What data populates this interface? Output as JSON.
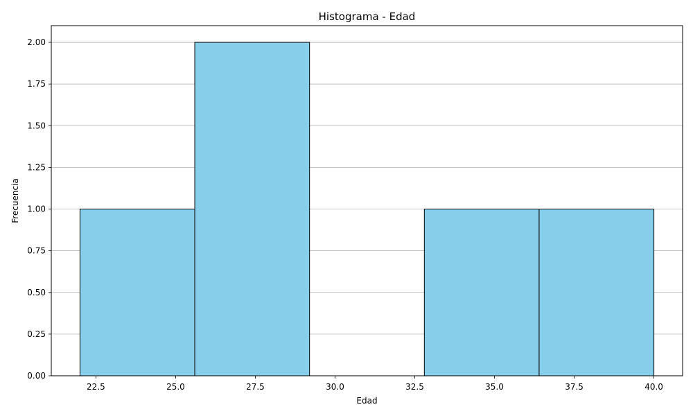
{
  "chart_data": {
    "type": "bar",
    "title": "Histograma - Edad",
    "xlabel": "Edad",
    "ylabel": "Frecuencia",
    "bins": [
      {
        "start": 22.0,
        "end": 25.6,
        "count": 1
      },
      {
        "start": 25.6,
        "end": 29.2,
        "count": 2
      },
      {
        "start": 29.2,
        "end": 32.8,
        "count": 0
      },
      {
        "start": 32.8,
        "end": 36.4,
        "count": 1
      },
      {
        "start": 36.4,
        "end": 40.0,
        "count": 1
      }
    ],
    "xlim": [
      21.1,
      40.9
    ],
    "ylim": [
      0,
      2.1
    ],
    "xticks": [
      "22.5",
      "25.0",
      "27.5",
      "30.0",
      "32.5",
      "35.0",
      "37.5",
      "40.0"
    ],
    "yticks": [
      "0.00",
      "0.25",
      "0.50",
      "0.75",
      "1.00",
      "1.25",
      "1.50",
      "1.75",
      "2.00"
    ],
    "grid": "y",
    "bar_color": "#87ceeb",
    "edge_color": "#000000",
    "grid_color": "#b0b0b0"
  }
}
